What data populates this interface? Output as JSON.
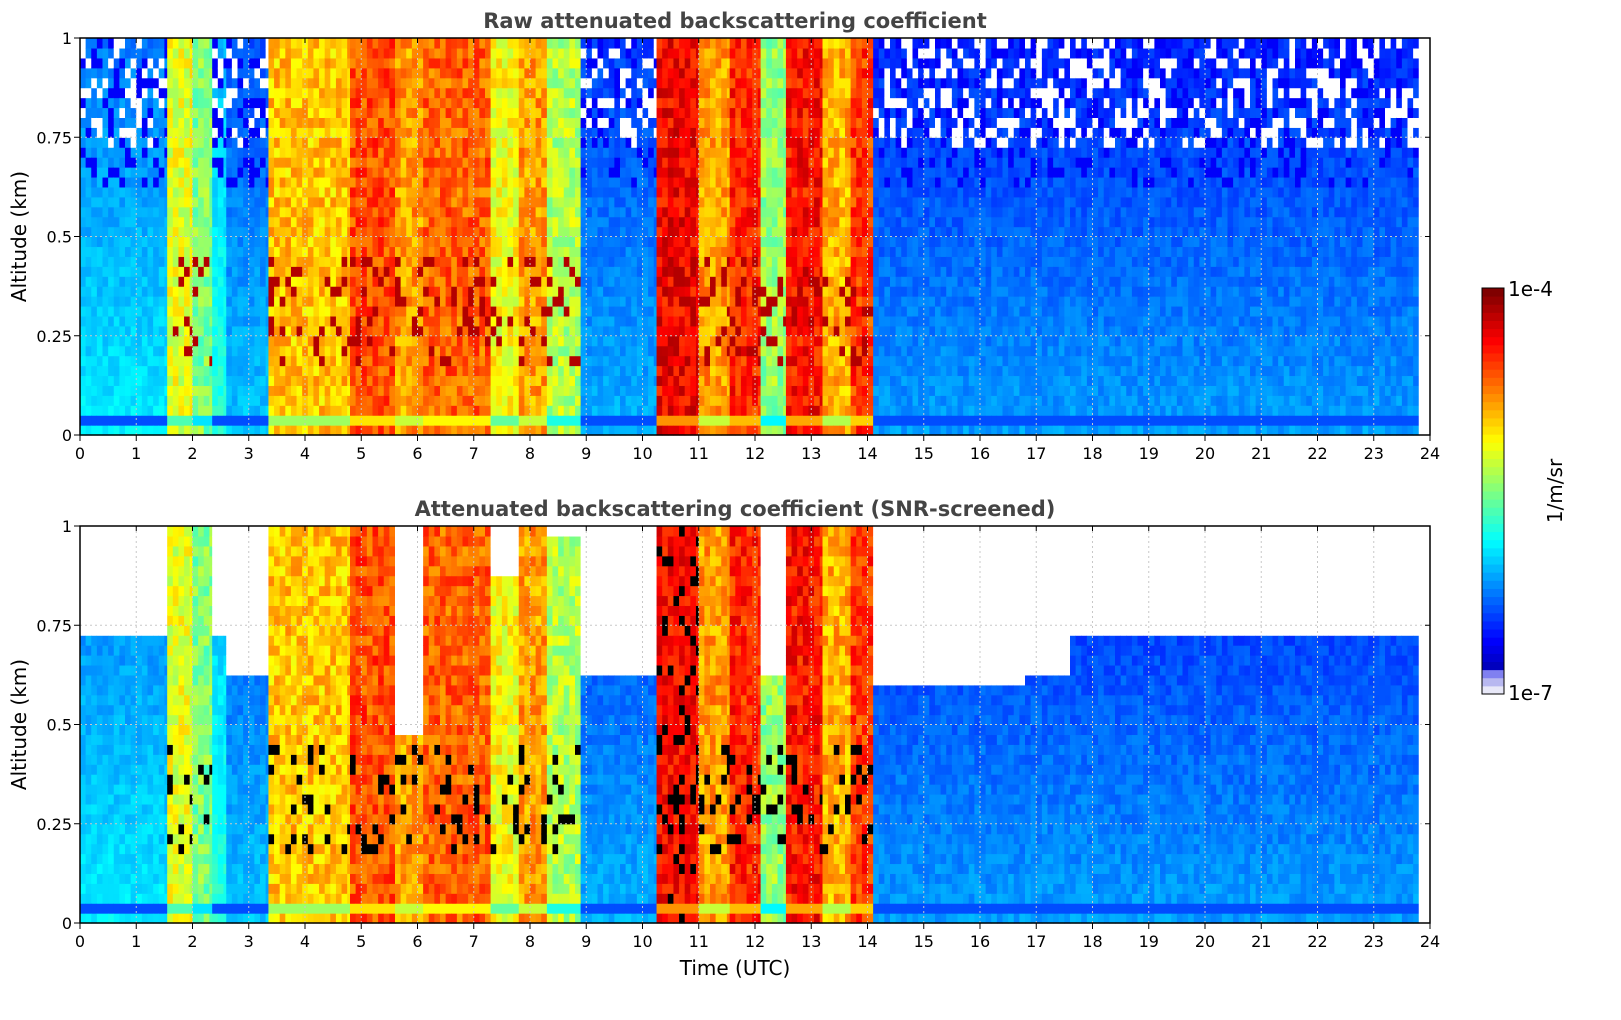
{
  "chart_data": [
    {
      "type": "heatmap",
      "title": "Raw attenuated backscattering coefficient",
      "xlabel": "",
      "ylabel": "Altitude (km)",
      "xlim": [
        0,
        24
      ],
      "ylim": [
        0,
        1
      ],
      "x_ticks": [
        "0",
        "1",
        "2",
        "3",
        "4",
        "5",
        "6",
        "7",
        "8",
        "9",
        "10",
        "11",
        "12",
        "13",
        "14",
        "15",
        "16",
        "17",
        "18",
        "19",
        "20",
        "21",
        "22",
        "23",
        "24"
      ],
      "y_ticks": [
        "0",
        "0.25",
        "0.5",
        "0.75",
        "1"
      ],
      "grid": true,
      "x_data_end": 23.8,
      "screened": false,
      "time_segments": [
        {
          "start": 0.0,
          "end": 1.55,
          "level": 0.36
        },
        {
          "start": 1.55,
          "end": 2.0,
          "level": 0.6
        },
        {
          "start": 2.0,
          "end": 2.35,
          "level": 0.5
        },
        {
          "start": 2.35,
          "end": 2.6,
          "level": 0.42
        },
        {
          "start": 2.6,
          "end": 3.35,
          "level": 0.32
        },
        {
          "start": 3.35,
          "end": 4.8,
          "level": 0.68
        },
        {
          "start": 4.8,
          "end": 5.6,
          "level": 0.8
        },
        {
          "start": 5.6,
          "end": 6.1,
          "level": 0.72
        },
        {
          "start": 6.1,
          "end": 7.3,
          "level": 0.78
        },
        {
          "start": 7.3,
          "end": 7.8,
          "level": 0.62
        },
        {
          "start": 7.8,
          "end": 8.3,
          "level": 0.72
        },
        {
          "start": 8.3,
          "end": 8.9,
          "level": 0.55
        },
        {
          "start": 8.9,
          "end": 10.25,
          "level": 0.3
        },
        {
          "start": 10.25,
          "end": 11.0,
          "level": 0.88
        },
        {
          "start": 11.0,
          "end": 11.55,
          "level": 0.72
        },
        {
          "start": 11.55,
          "end": 12.1,
          "level": 0.84
        },
        {
          "start": 12.1,
          "end": 12.55,
          "level": 0.52
        },
        {
          "start": 12.55,
          "end": 13.2,
          "level": 0.86
        },
        {
          "start": 13.2,
          "end": 13.7,
          "level": 0.7
        },
        {
          "start": 13.7,
          "end": 14.1,
          "level": 0.82
        },
        {
          "start": 14.1,
          "end": 23.8,
          "level": 0.28
        }
      ]
    },
    {
      "type": "heatmap",
      "title": "Attenuated backscattering coefficient (SNR-screened)",
      "xlabel": "Time (UTC)",
      "ylabel": "Altitude (km)",
      "xlim": [
        0,
        24
      ],
      "ylim": [
        0,
        1
      ],
      "x_ticks": [
        "0",
        "1",
        "2",
        "3",
        "4",
        "5",
        "6",
        "7",
        "8",
        "9",
        "10",
        "11",
        "12",
        "13",
        "14",
        "15",
        "16",
        "17",
        "18",
        "19",
        "20",
        "21",
        "22",
        "23",
        "24"
      ],
      "y_ticks": [
        "0",
        "0.25",
        "0.5",
        "0.75",
        "1"
      ],
      "grid": true,
      "x_data_end": 23.8,
      "screened": true,
      "time_segments": [
        {
          "start": 0.0,
          "end": 1.55,
          "level": 0.36,
          "top": 0.72
        },
        {
          "start": 1.55,
          "end": 2.0,
          "level": 0.6,
          "top": 1.0
        },
        {
          "start": 2.0,
          "end": 2.35,
          "level": 0.5,
          "top": 1.0
        },
        {
          "start": 2.35,
          "end": 2.6,
          "level": 0.42,
          "top": 0.7
        },
        {
          "start": 2.6,
          "end": 3.35,
          "level": 0.32,
          "top": 0.6
        },
        {
          "start": 3.35,
          "end": 4.8,
          "level": 0.68,
          "top": 1.0
        },
        {
          "start": 4.8,
          "end": 5.6,
          "level": 0.8,
          "top": 1.0
        },
        {
          "start": 5.6,
          "end": 6.1,
          "level": 0.72,
          "top": 0.45
        },
        {
          "start": 6.1,
          "end": 7.3,
          "level": 0.78,
          "top": 1.0
        },
        {
          "start": 7.3,
          "end": 7.8,
          "level": 0.62,
          "top": 0.85
        },
        {
          "start": 7.8,
          "end": 8.3,
          "level": 0.72,
          "top": 1.0
        },
        {
          "start": 8.3,
          "end": 8.9,
          "level": 0.55,
          "top": 0.95
        },
        {
          "start": 8.9,
          "end": 10.25,
          "level": 0.3,
          "top": 0.6
        },
        {
          "start": 10.25,
          "end": 11.0,
          "level": 0.88,
          "top": 1.0
        },
        {
          "start": 11.0,
          "end": 11.55,
          "level": 0.72,
          "top": 1.0
        },
        {
          "start": 11.55,
          "end": 12.1,
          "level": 0.84,
          "top": 1.0
        },
        {
          "start": 12.1,
          "end": 12.55,
          "level": 0.52,
          "top": 0.6
        },
        {
          "start": 12.55,
          "end": 13.2,
          "level": 0.86,
          "top": 1.0
        },
        {
          "start": 13.2,
          "end": 13.7,
          "level": 0.7,
          "top": 1.0
        },
        {
          "start": 13.7,
          "end": 14.1,
          "level": 0.82,
          "top": 1.0
        },
        {
          "start": 14.1,
          "end": 16.8,
          "level": 0.28,
          "top": 0.58
        },
        {
          "start": 16.8,
          "end": 17.6,
          "level": 0.28,
          "top": 0.62
        },
        {
          "start": 17.6,
          "end": 23.8,
          "level": 0.28,
          "top": 0.7
        }
      ]
    }
  ],
  "colorbar": {
    "max_label": "1e-4",
    "min_label": "1e-7",
    "unit_label": "1/m/sr",
    "colormap": "jet"
  },
  "colors": {
    "title": "#444444",
    "grid": "#c8c8c8"
  }
}
